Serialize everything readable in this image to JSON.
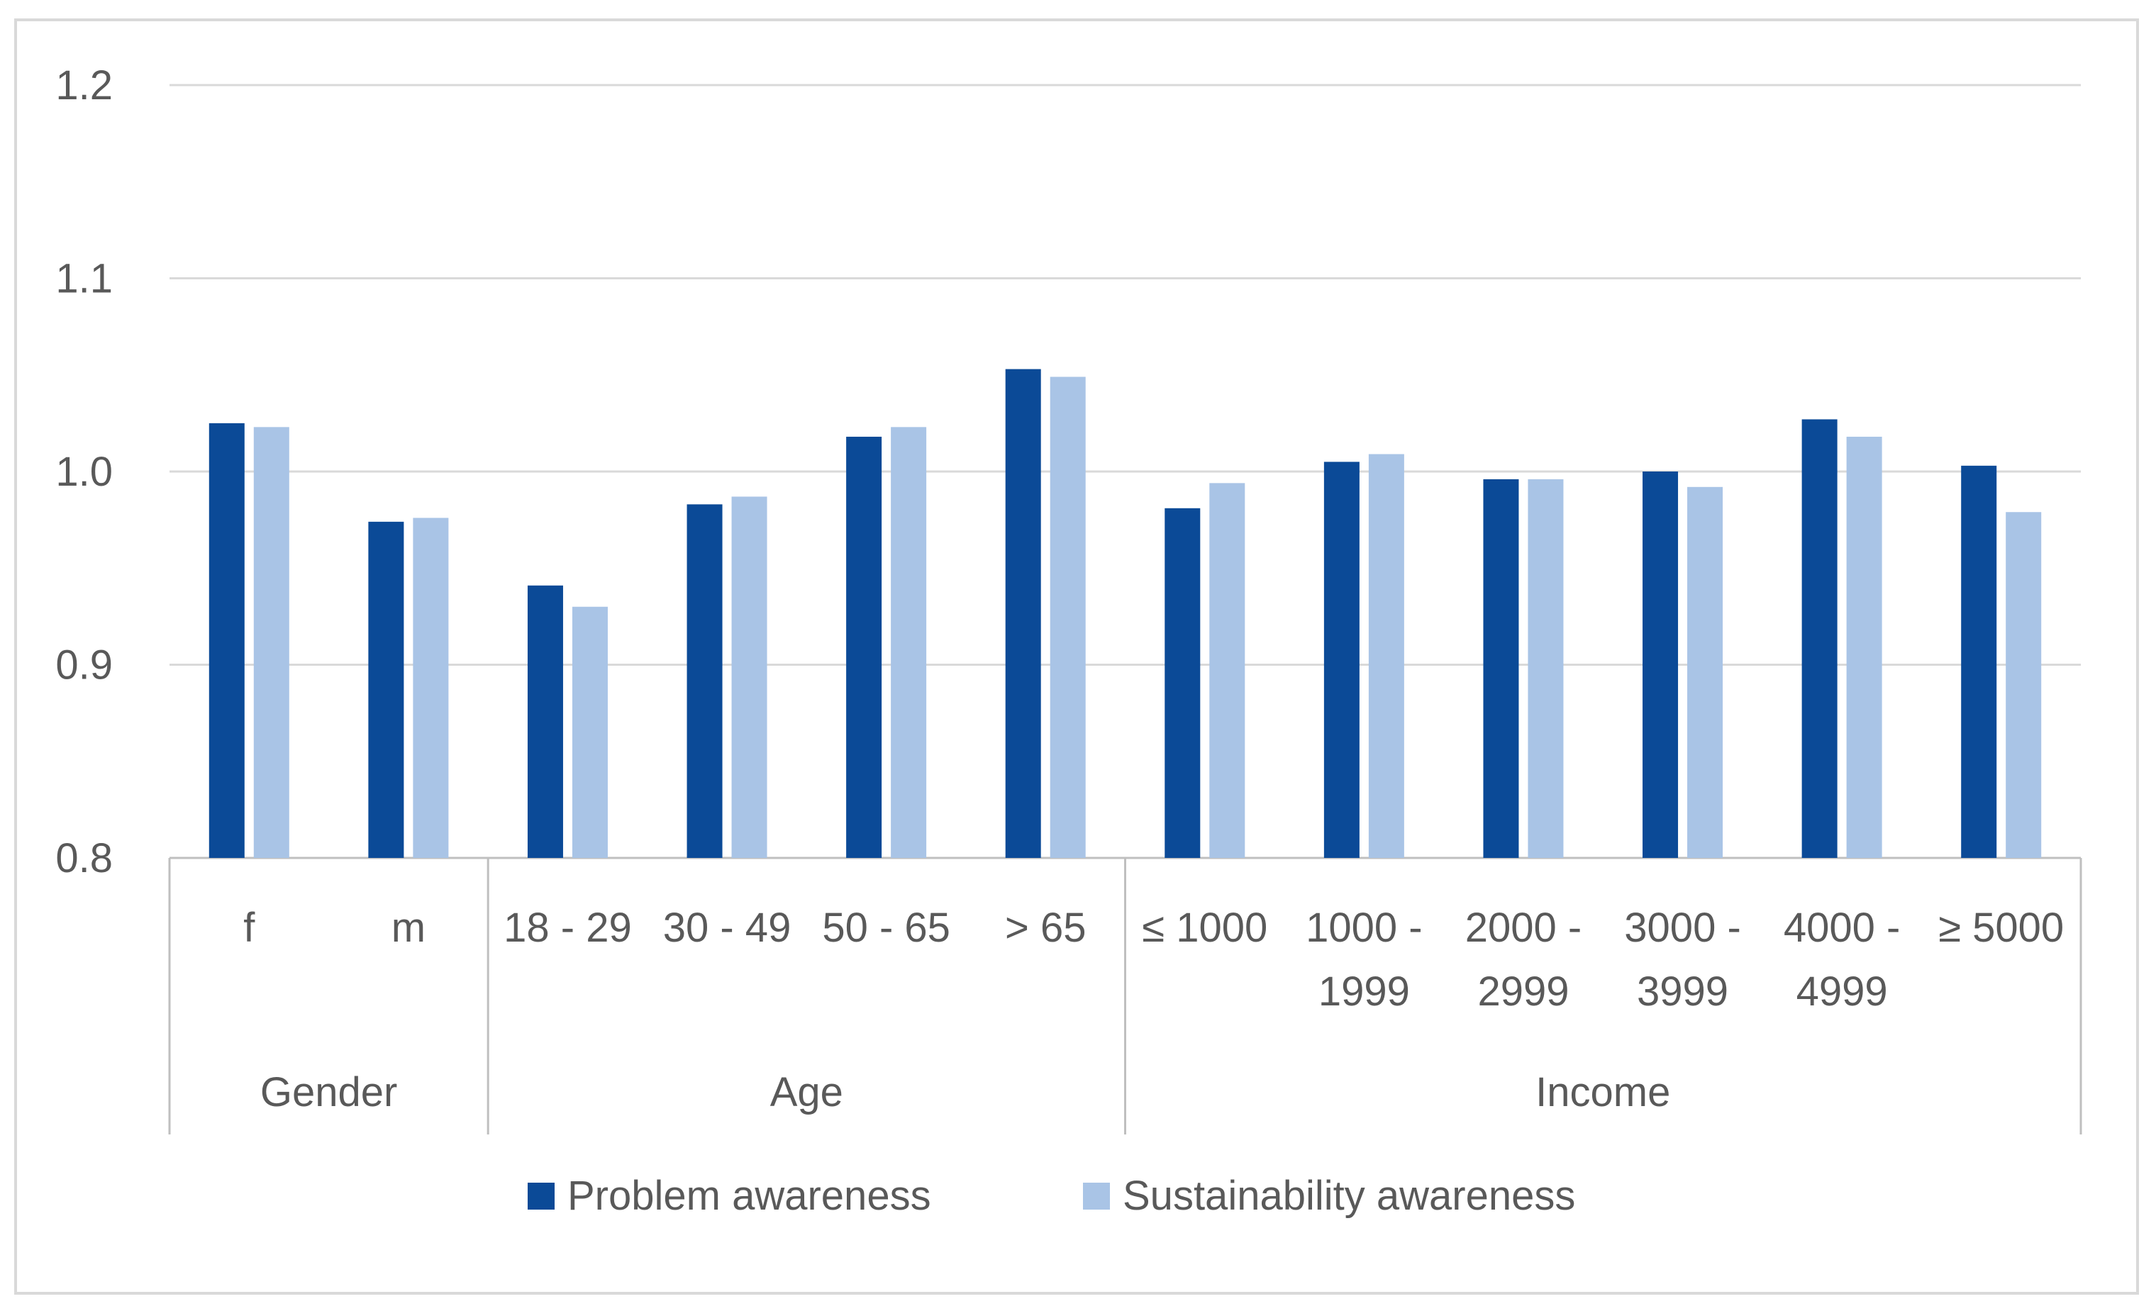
{
  "chart_data": {
    "type": "bar",
    "title": "",
    "xlabel": "",
    "ylabel": "",
    "ylim": [
      0.8,
      1.2
    ],
    "yticks": [
      "0.8",
      "0.9",
      "1.0",
      "1.1",
      "1.2"
    ],
    "ytick_values": [
      0.8,
      0.9,
      1.0,
      1.1,
      1.2
    ],
    "grid": true,
    "legend_position": "bottom",
    "groups": [
      {
        "name": "Gender",
        "categories": [
          [
            "f"
          ],
          [
            "m"
          ]
        ]
      },
      {
        "name": "Age",
        "categories": [
          [
            "18 - 29"
          ],
          [
            "30 - 49"
          ],
          [
            "50 - 65"
          ],
          [
            "> 65"
          ]
        ]
      },
      {
        "name": "Income",
        "categories": [
          [
            "≤ 1000"
          ],
          [
            "1000 -",
            "1999"
          ],
          [
            "2000 -",
            "2999"
          ],
          [
            "3000 -",
            "3999"
          ],
          [
            "4000 -",
            "4999"
          ],
          [
            "≥ 5000"
          ]
        ]
      }
    ],
    "series": [
      {
        "name": "Problem awareness",
        "color": "#0b4a97",
        "values": [
          1.025,
          0.974,
          0.941,
          0.983,
          1.018,
          1.053,
          0.981,
          1.005,
          0.996,
          1.0,
          1.027,
          1.003
        ]
      },
      {
        "name": "Sustainability awareness",
        "color": "#a9c4e6",
        "values": [
          1.023,
          0.976,
          0.93,
          0.987,
          1.023,
          1.049,
          0.994,
          1.009,
          0.996,
          0.992,
          1.018,
          0.979
        ]
      }
    ],
    "colors": {
      "grid": "#d9d9d9",
      "axis": "#bfbfbf",
      "text": "#595959"
    }
  }
}
